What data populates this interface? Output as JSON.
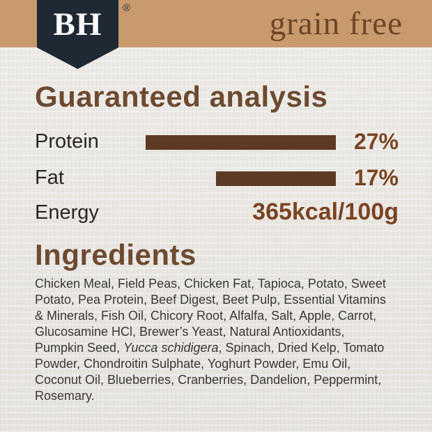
{
  "brand": {
    "logo_text": "BH",
    "registered_mark": "®",
    "banner_label": "grain free"
  },
  "colors": {
    "banner_tan": "#c89a6d",
    "shield_navy": "#1f2933",
    "heading_brown": "#6d4a31",
    "bar_brown": "#5d3a23",
    "value_brown": "#7a4423",
    "background": "#eae7e3"
  },
  "guaranteed_analysis": {
    "title": "Guaranteed analysis",
    "rows": [
      {
        "label": "Protein",
        "value": "27%",
        "bar_percent": 27
      },
      {
        "label": "Fat",
        "value": "17%",
        "bar_percent": 17
      },
      {
        "label": "Energy",
        "value": "365kcal/100g",
        "bar_percent": 0
      }
    ]
  },
  "chart_data": {
    "type": "bar",
    "categories": [
      "Protein",
      "Fat"
    ],
    "values": [
      27,
      17
    ],
    "title": "Guaranteed analysis",
    "xlabel": "",
    "ylabel": "percent",
    "annotations": [
      "Energy 365kcal/100g"
    ]
  },
  "ingredients": {
    "title": "Ingredients",
    "text_before_italic": "Chicken Meal, Field Peas, Chicken Fat, Tapioca, Potato, Sweet Potato, Pea Protein, Beef Digest, Beet Pulp, Essential Vitamins & Minerals, Fish Oil, Chicory Root, Alfalfa, Salt, Apple, Carrot, Glucosamine HCl, Brewer’s Yeast, Natural Antioxidants, Pumpkin Seed, ",
    "italic_text": "Yucca schidigera",
    "text_after_italic": ", Spinach, Dried Kelp, Tomato Powder, Chondroitin Sulphate, Yoghurt Powder, Emu Oil, Coconut Oil, Blueberries, Cranberries, Dandelion, Peppermint, Rosemary."
  }
}
